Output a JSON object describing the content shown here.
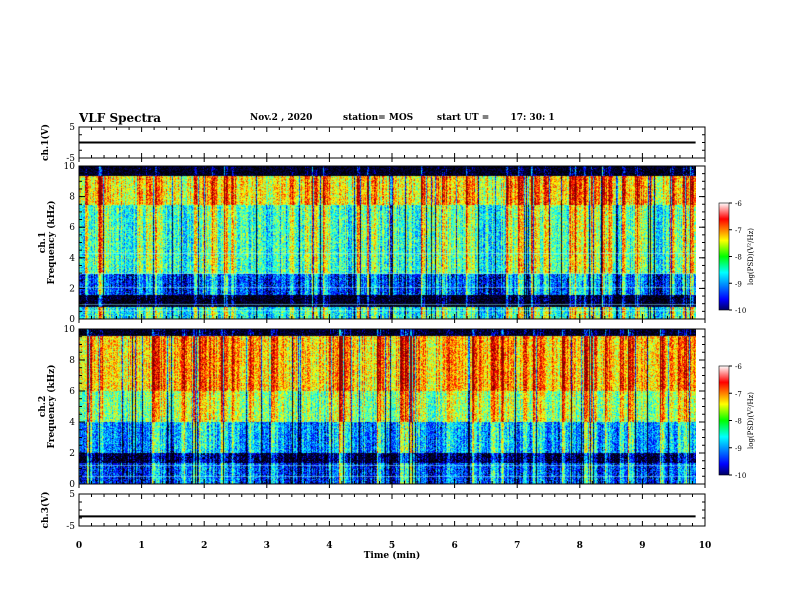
{
  "header": {
    "title": "VLF Spectra",
    "date": "Nov.2  , 2020",
    "station": "station= MOS",
    "start_label": "start  UT  =",
    "start_time": "17: 30: 1"
  },
  "chart_data": [
    {
      "type": "line",
      "ylabel": "ch.1(V)",
      "ylim": [
        -5,
        5
      ],
      "yticks": [
        "5",
        "-5"
      ],
      "series": [
        {
          "values": [
            0.0
          ]
        }
      ]
    },
    {
      "type": "heatmap",
      "ylabel": "ch.1\nFrequency (kHz)",
      "ylim": [
        0,
        10
      ],
      "yticks": [
        "0",
        "2",
        "4",
        "6",
        "8",
        "10"
      ],
      "colorbar": {
        "label": "log(PSD)(V²/Hz)",
        "ticks": [
          "-6",
          "-7",
          "-8",
          "-9",
          "-10"
        ],
        "range": [
          -10,
          -6
        ]
      }
    },
    {
      "type": "heatmap",
      "ylabel": "ch.2\nFrequency (kHz)",
      "ylim": [
        0,
        10
      ],
      "yticks": [
        "0",
        "2",
        "4",
        "6",
        "8",
        "10"
      ],
      "colorbar": {
        "label": "log(PSD)(V²/Hz)",
        "ticks": [
          "-6",
          "-7",
          "-8",
          "-9",
          "-10"
        ],
        "range": [
          -10,
          -6
        ]
      }
    },
    {
      "type": "line",
      "ylabel": "ch.3(V)",
      "ylim": [
        -5,
        5
      ],
      "yticks": [
        "5",
        "-5"
      ],
      "series": [
        {
          "values": [
            -2.0
          ]
        }
      ]
    }
  ],
  "xaxis": {
    "label": "Time  (min)",
    "range": [
      0,
      10
    ],
    "ticks": [
      "0",
      "1",
      "2",
      "3",
      "4",
      "5",
      "6",
      "7",
      "8",
      "9",
      "10"
    ],
    "data_end": 9.85
  },
  "colors": {
    "spectrogram_low": "#000000",
    "spectrogram_high": "#ff0000"
  }
}
